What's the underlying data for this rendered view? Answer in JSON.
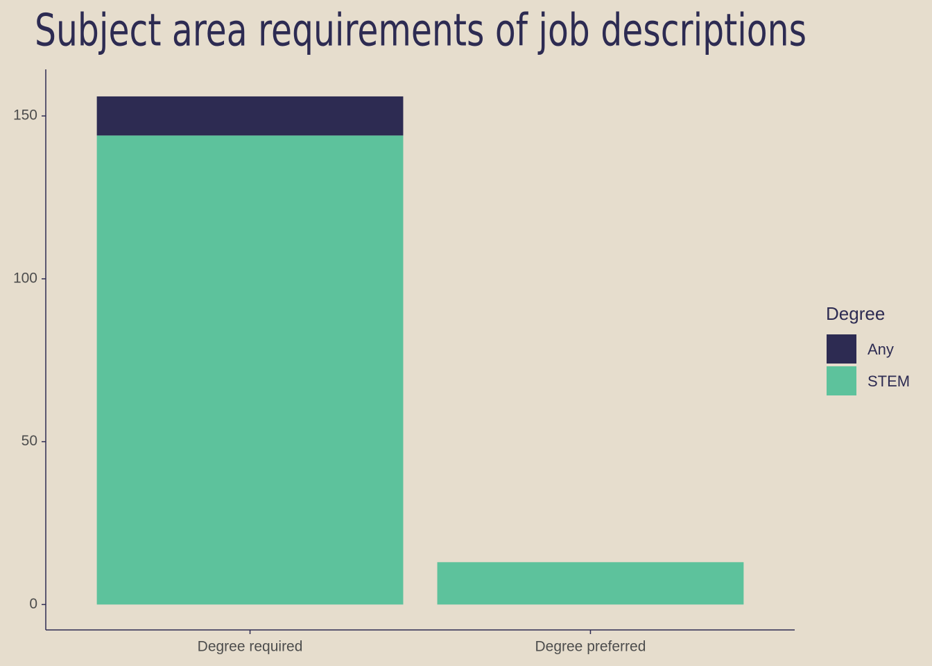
{
  "chart_data": {
    "type": "bar",
    "stacked": true,
    "title": "Subject area requirements of job descriptions",
    "categories": [
      "Degree required",
      "Degree preferred"
    ],
    "series": [
      {
        "name": "Any",
        "color": "#2d2b52",
        "values": [
          12,
          0
        ]
      },
      {
        "name": "STEM",
        "color": "#5dc29c",
        "values": [
          144,
          13
        ]
      }
    ],
    "legend_title": "Degree",
    "ylim": [
      -7.8,
      164.3
    ],
    "yticks": [
      0,
      50,
      100,
      150
    ]
  }
}
